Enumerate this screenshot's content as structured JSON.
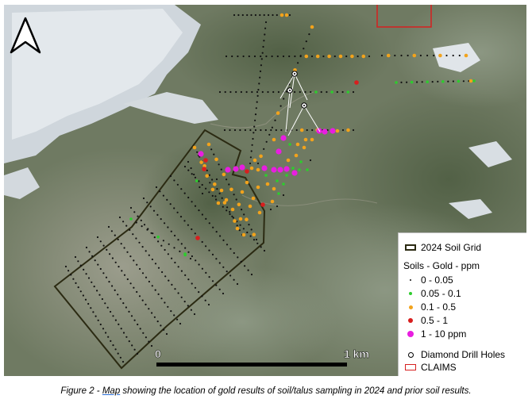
{
  "map": {
    "scale_start": "0",
    "scale_end": "1 km",
    "north_arrow": "north-arrow-icon",
    "colors": {
      "grid_outline": "#2b2a12",
      "claims": "#d62020",
      "cat1": "#111111",
      "cat2": "#2ecc2e",
      "cat3": "#f2a31c",
      "cat4": "#d81e1e",
      "cat5": "#e81ee0",
      "snow": "#dfe5ea",
      "terrain_dark": "#5d6a4e",
      "terrain_light": "#8a9482"
    }
  },
  "legend": {
    "grid_label": "2024 Soil Grid",
    "soils_title": "Soils - Gold - ppm",
    "categories": [
      {
        "label": "0 - 0.05",
        "color": "#111111"
      },
      {
        "label": "0.05 - 0.1",
        "color": "#2ecc2e"
      },
      {
        "label": "0.1 - 0.5",
        "color": "#f2a31c"
      },
      {
        "label": "0.5 - 1",
        "color": "#d81e1e"
      },
      {
        "label": "1 - 10 ppm",
        "color": "#e81ee0"
      }
    ],
    "drill_label": "Diamond Drill Holes",
    "claims_label": "CLAIMS"
  },
  "caption": {
    "prefix": "Figure 2 - ",
    "link": "Map",
    "rest": " showing the location of gold results of soil/talus sampling in 2024 and prior soil results."
  }
}
